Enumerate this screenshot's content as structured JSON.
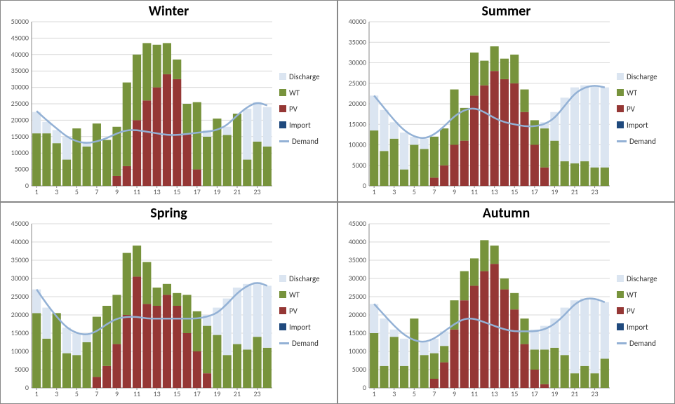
{
  "colors": {
    "discharge": "#dbe5f1",
    "wt": "#77933c",
    "pv": "#953735",
    "import": "#1f497d",
    "demand": "#93b1d5",
    "grid": "#d9d9d9",
    "axis": "#888888",
    "ticktext": "#595959",
    "bg": "#ffffff"
  },
  "legend": [
    {
      "key": "discharge",
      "label": "Discharge",
      "type": "box"
    },
    {
      "key": "wt",
      "label": "WT",
      "type": "box"
    },
    {
      "key": "pv",
      "label": "PV",
      "type": "box"
    },
    {
      "key": "import",
      "label": "Import",
      "type": "boxline"
    },
    {
      "key": "demand",
      "label": "Demand",
      "type": "line"
    }
  ],
  "style": {
    "title_fontsize": 20,
    "legend_fontsize": 11,
    "tick_fontsize": 10,
    "bar_gap_ratio": 0.15,
    "line_width": 2.5
  },
  "x_categories": [
    1,
    2,
    3,
    4,
    5,
    6,
    7,
    8,
    9,
    10,
    11,
    12,
    13,
    14,
    15,
    16,
    17,
    18,
    19,
    20,
    21,
    22,
    23,
    24
  ],
  "x_tick_labels": [
    1,
    3,
    5,
    7,
    9,
    11,
    13,
    15,
    17,
    19,
    21,
    23
  ],
  "panels": [
    {
      "title": "Winter",
      "ylim": [
        0,
        50000
      ],
      "ytick_step": 5000,
      "stacks": [
        {
          "import": 0,
          "pv": 0,
          "wt": 16000,
          "discharge": 6500
        },
        {
          "import": 0,
          "pv": 0,
          "wt": 16000,
          "discharge": 3500
        },
        {
          "import": 0,
          "pv": 0,
          "wt": 13000,
          "discharge": 4000
        },
        {
          "import": 0,
          "pv": 0,
          "wt": 8000,
          "discharge": 7000
        },
        {
          "import": 0,
          "pv": 0,
          "wt": 17500,
          "discharge": 0
        },
        {
          "import": 0,
          "pv": 0,
          "wt": 12000,
          "discharge": 1500
        },
        {
          "import": 0,
          "pv": 0,
          "wt": 19000,
          "discharge": 0
        },
        {
          "import": 0,
          "pv": 0,
          "wt": 14000,
          "discharge": 0
        },
        {
          "import": 0,
          "pv": 3000,
          "wt": 15000,
          "discharge": 0
        },
        {
          "import": 0,
          "pv": 6000,
          "wt": 25500,
          "discharge": 0
        },
        {
          "import": 0,
          "pv": 20000,
          "wt": 20000,
          "discharge": 0
        },
        {
          "import": 0,
          "pv": 26000,
          "wt": 17500,
          "discharge": 0
        },
        {
          "import": 0,
          "pv": 30000,
          "wt": 13000,
          "discharge": 0
        },
        {
          "import": 0,
          "pv": 34000,
          "wt": 9500,
          "discharge": 0
        },
        {
          "import": 0,
          "pv": 32500,
          "wt": 6000,
          "discharge": 0
        },
        {
          "import": 0,
          "pv": 16000,
          "wt": 9000,
          "discharge": 0
        },
        {
          "import": 0,
          "pv": 5000,
          "wt": 20500,
          "discharge": 0
        },
        {
          "import": 0,
          "pv": 0,
          "wt": 15000,
          "discharge": 2000
        },
        {
          "import": 0,
          "pv": 0,
          "wt": 20500,
          "discharge": 0
        },
        {
          "import": 0,
          "pv": 0,
          "wt": 15500,
          "discharge": 2500
        },
        {
          "import": 0,
          "pv": 0,
          "wt": 22000,
          "discharge": 0
        },
        {
          "import": 0,
          "pv": 0,
          "wt": 8000,
          "discharge": 15500
        },
        {
          "import": 0,
          "pv": 0,
          "wt": 13500,
          "discharge": 12000
        },
        {
          "import": 0,
          "pv": 0,
          "wt": 12000,
          "discharge": 12000
        }
      ],
      "demand": [
        22800,
        20000,
        17500,
        15000,
        13500,
        13000,
        13500,
        14500,
        16000,
        17000,
        17000,
        16500,
        16000,
        15500,
        15500,
        15800,
        16200,
        16500,
        17000,
        18500,
        21500,
        24000,
        25500,
        24500
      ]
    },
    {
      "title": "Summer",
      "ylim": [
        0,
        40000
      ],
      "ytick_step": 5000,
      "stacks": [
        {
          "import": 0,
          "pv": 0,
          "wt": 13500,
          "discharge": 8500
        },
        {
          "import": 0,
          "pv": 0,
          "wt": 8500,
          "discharge": 10000
        },
        {
          "import": 0,
          "pv": 0,
          "wt": 11500,
          "discharge": 4000
        },
        {
          "import": 0,
          "pv": 0,
          "wt": 4000,
          "discharge": 9000
        },
        {
          "import": 0,
          "pv": 0,
          "wt": 10000,
          "discharge": 2000
        },
        {
          "import": 0,
          "pv": 0,
          "wt": 9000,
          "discharge": 2500
        },
        {
          "import": 0,
          "pv": 2000,
          "wt": 10000,
          "discharge": 0
        },
        {
          "import": 0,
          "pv": 5000,
          "wt": 9000,
          "discharge": 0
        },
        {
          "import": 0,
          "pv": 10000,
          "wt": 13500,
          "discharge": 0
        },
        {
          "import": 0,
          "pv": 11000,
          "wt": 8000,
          "discharge": 0
        },
        {
          "import": 0,
          "pv": 22000,
          "wt": 10500,
          "discharge": 0
        },
        {
          "import": 0,
          "pv": 24500,
          "wt": 6000,
          "discharge": 0
        },
        {
          "import": 0,
          "pv": 28000,
          "wt": 6000,
          "discharge": 0
        },
        {
          "import": 0,
          "pv": 26000,
          "wt": 5000,
          "discharge": 0
        },
        {
          "import": 0,
          "pv": 25000,
          "wt": 7000,
          "discharge": 0
        },
        {
          "import": 0,
          "pv": 18000,
          "wt": 5500,
          "discharge": 0
        },
        {
          "import": 0,
          "pv": 10000,
          "wt": 6000,
          "discharge": 0
        },
        {
          "import": 0,
          "pv": 4500,
          "wt": 9500,
          "discharge": 1500
        },
        {
          "import": 0,
          "pv": 0,
          "wt": 11000,
          "discharge": 7000
        },
        {
          "import": 0,
          "pv": 0,
          "wt": 6000,
          "discharge": 15500
        },
        {
          "import": 0,
          "pv": 0,
          "wt": 5500,
          "discharge": 18500
        },
        {
          "import": 0,
          "pv": 0,
          "wt": 6000,
          "discharge": 18500
        },
        {
          "import": 0,
          "pv": 0,
          "wt": 4500,
          "discharge": 20000
        },
        {
          "import": 0,
          "pv": 0,
          "wt": 4500,
          "discharge": 19500
        }
      ],
      "demand": [
        22000,
        19000,
        16000,
        13500,
        12000,
        11500,
        12500,
        14500,
        17000,
        18500,
        19000,
        18000,
        16500,
        15500,
        15000,
        14500,
        14500,
        15000,
        16500,
        19500,
        22500,
        24000,
        24500,
        24000
      ]
    },
    {
      "title": "Spring",
      "ylim": [
        0,
        45000
      ],
      "ytick_step": 5000,
      "stacks": [
        {
          "import": 0,
          "pv": 0,
          "wt": 20500,
          "discharge": 6500
        },
        {
          "import": 0,
          "pv": 0,
          "wt": 13500,
          "discharge": 8500
        },
        {
          "import": 0,
          "pv": 0,
          "wt": 20500,
          "discharge": 0
        },
        {
          "import": 0,
          "pv": 0,
          "wt": 9500,
          "discharge": 7000
        },
        {
          "import": 0,
          "pv": 0,
          "wt": 9000,
          "discharge": 6000
        },
        {
          "import": 0,
          "pv": 0,
          "wt": 12500,
          "discharge": 2500
        },
        {
          "import": 0,
          "pv": 3000,
          "wt": 16500,
          "discharge": 0
        },
        {
          "import": 0,
          "pv": 6000,
          "wt": 16500,
          "discharge": 0
        },
        {
          "import": 0,
          "pv": 12000,
          "wt": 13500,
          "discharge": 0
        },
        {
          "import": 0,
          "pv": 20000,
          "wt": 17000,
          "discharge": 0
        },
        {
          "import": 0,
          "pv": 30500,
          "wt": 8500,
          "discharge": 0
        },
        {
          "import": 0,
          "pv": 23000,
          "wt": 11500,
          "discharge": 0
        },
        {
          "import": 0,
          "pv": 22500,
          "wt": 5000,
          "discharge": 0
        },
        {
          "import": 0,
          "pv": 25500,
          "wt": 3000,
          "discharge": 0
        },
        {
          "import": 0,
          "pv": 22500,
          "wt": 3500,
          "discharge": 0
        },
        {
          "import": 0,
          "pv": 15000,
          "wt": 10500,
          "discharge": 0
        },
        {
          "import": 0,
          "pv": 10000,
          "wt": 11000,
          "discharge": 0
        },
        {
          "import": 0,
          "pv": 4000,
          "wt": 13000,
          "discharge": 3000
        },
        {
          "import": 0,
          "pv": 0,
          "wt": 14500,
          "discharge": 7500
        },
        {
          "import": 0,
          "pv": 0,
          "wt": 9000,
          "discharge": 15500
        },
        {
          "import": 0,
          "pv": 0,
          "wt": 12000,
          "discharge": 15500
        },
        {
          "import": 0,
          "pv": 0,
          "wt": 10500,
          "discharge": 18000
        },
        {
          "import": 0,
          "pv": 0,
          "wt": 14000,
          "discharge": 15000
        },
        {
          "import": 0,
          "pv": 0,
          "wt": 11000,
          "discharge": 17000
        }
      ],
      "demand": [
        27000,
        23000,
        19500,
        16500,
        15000,
        14500,
        15500,
        17500,
        19000,
        19500,
        19500,
        19000,
        19000,
        19000,
        19000,
        19000,
        19000,
        19500,
        20500,
        23000,
        26000,
        28000,
        29000,
        28000
      ]
    },
    {
      "title": "Autumn",
      "ylim": [
        0,
        45000
      ],
      "ytick_step": 5000,
      "stacks": [
        {
          "import": 0,
          "pv": 0,
          "wt": 15000,
          "discharge": 8000
        },
        {
          "import": 0,
          "pv": 0,
          "wt": 6000,
          "discharge": 13000
        },
        {
          "import": 0,
          "pv": 0,
          "wt": 14000,
          "discharge": 2000
        },
        {
          "import": 0,
          "pv": 0,
          "wt": 6000,
          "discharge": 7500
        },
        {
          "import": 0,
          "pv": 0,
          "wt": 19000,
          "discharge": 0
        },
        {
          "import": 0,
          "pv": 0,
          "wt": 9000,
          "discharge": 3500
        },
        {
          "import": 0,
          "pv": 2500,
          "wt": 7000,
          "discharge": 4000
        },
        {
          "import": 0,
          "pv": 7000,
          "wt": 4500,
          "discharge": 4000
        },
        {
          "import": 0,
          "pv": 16000,
          "wt": 8000,
          "discharge": 0
        },
        {
          "import": 0,
          "pv": 24000,
          "wt": 8000,
          "discharge": 0
        },
        {
          "import": 0,
          "pv": 28000,
          "wt": 7500,
          "discharge": 0
        },
        {
          "import": 0,
          "pv": 32000,
          "wt": 8500,
          "discharge": 0
        },
        {
          "import": 0,
          "pv": 34000,
          "wt": 5000,
          "discharge": 0
        },
        {
          "import": 0,
          "pv": 27000,
          "wt": 3000,
          "discharge": 0
        },
        {
          "import": 0,
          "pv": 21500,
          "wt": 4500,
          "discharge": 0
        },
        {
          "import": 0,
          "pv": 12000,
          "wt": 7000,
          "discharge": 0
        },
        {
          "import": 0,
          "pv": 5000,
          "wt": 5500,
          "discharge": 5500
        },
        {
          "import": 0,
          "pv": 1000,
          "wt": 9500,
          "discharge": 6500
        },
        {
          "import": 0,
          "pv": 0,
          "wt": 11000,
          "discharge": 8000
        },
        {
          "import": 0,
          "pv": 0,
          "wt": 9000,
          "discharge": 13000
        },
        {
          "import": 0,
          "pv": 0,
          "wt": 4000,
          "discharge": 20000
        },
        {
          "import": 0,
          "pv": 0,
          "wt": 6000,
          "discharge": 18500
        },
        {
          "import": 0,
          "pv": 0,
          "wt": 4000,
          "discharge": 20500
        },
        {
          "import": 0,
          "pv": 0,
          "wt": 8000,
          "discharge": 15500
        }
      ],
      "demand": [
        23000,
        20000,
        17000,
        14500,
        13000,
        12500,
        13500,
        15500,
        17500,
        19000,
        19000,
        18000,
        17000,
        16000,
        15500,
        15500,
        15500,
        16000,
        17500,
        20000,
        23000,
        24500,
        24500,
        23500
      ]
    }
  ]
}
